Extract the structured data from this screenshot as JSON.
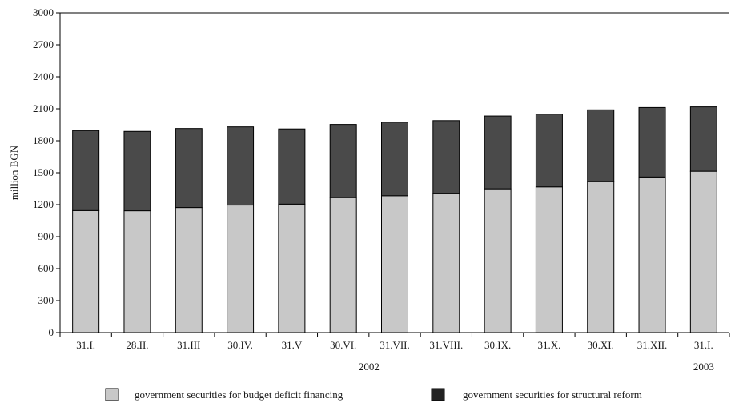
{
  "chart_data": {
    "type": "bar",
    "stacked": true,
    "categories": [
      "31.I.",
      "28.II.",
      "31.III",
      "30.IV.",
      "31.V",
      "30.VI.",
      "31.VII.",
      "31.VIII.",
      "30.IX.",
      "31.X.",
      "30.XI.",
      "31.XII.",
      "31.I."
    ],
    "year_labels": [
      {
        "text": "2002",
        "center_category_index": 5.5
      },
      {
        "text": "2003",
        "center_category_index": 12
      }
    ],
    "series": [
      {
        "name": "government securities for budget deficit financing",
        "color": "#c8c8c8",
        "values": [
          1145,
          1143,
          1173,
          1196,
          1205,
          1267,
          1284,
          1307,
          1349,
          1367,
          1418,
          1460,
          1514
        ]
      },
      {
        "name": "government securities for structural reform",
        "color": "#4a4a4a",
        "values": [
          751,
          745,
          742,
          734,
          706,
          686,
          690,
          682,
          683,
          683,
          672,
          652,
          604
        ]
      }
    ],
    "legend_swatch_colors": [
      "#c8c8c8",
      "#222222"
    ],
    "ylabel": "million BGN",
    "xlabel": "",
    "ylim": [
      0,
      3000
    ],
    "yticks": [
      0,
      300,
      600,
      900,
      1200,
      1500,
      1800,
      2100,
      2400,
      2700,
      3000
    ],
    "legend_position": "bottom",
    "grid": false
  }
}
